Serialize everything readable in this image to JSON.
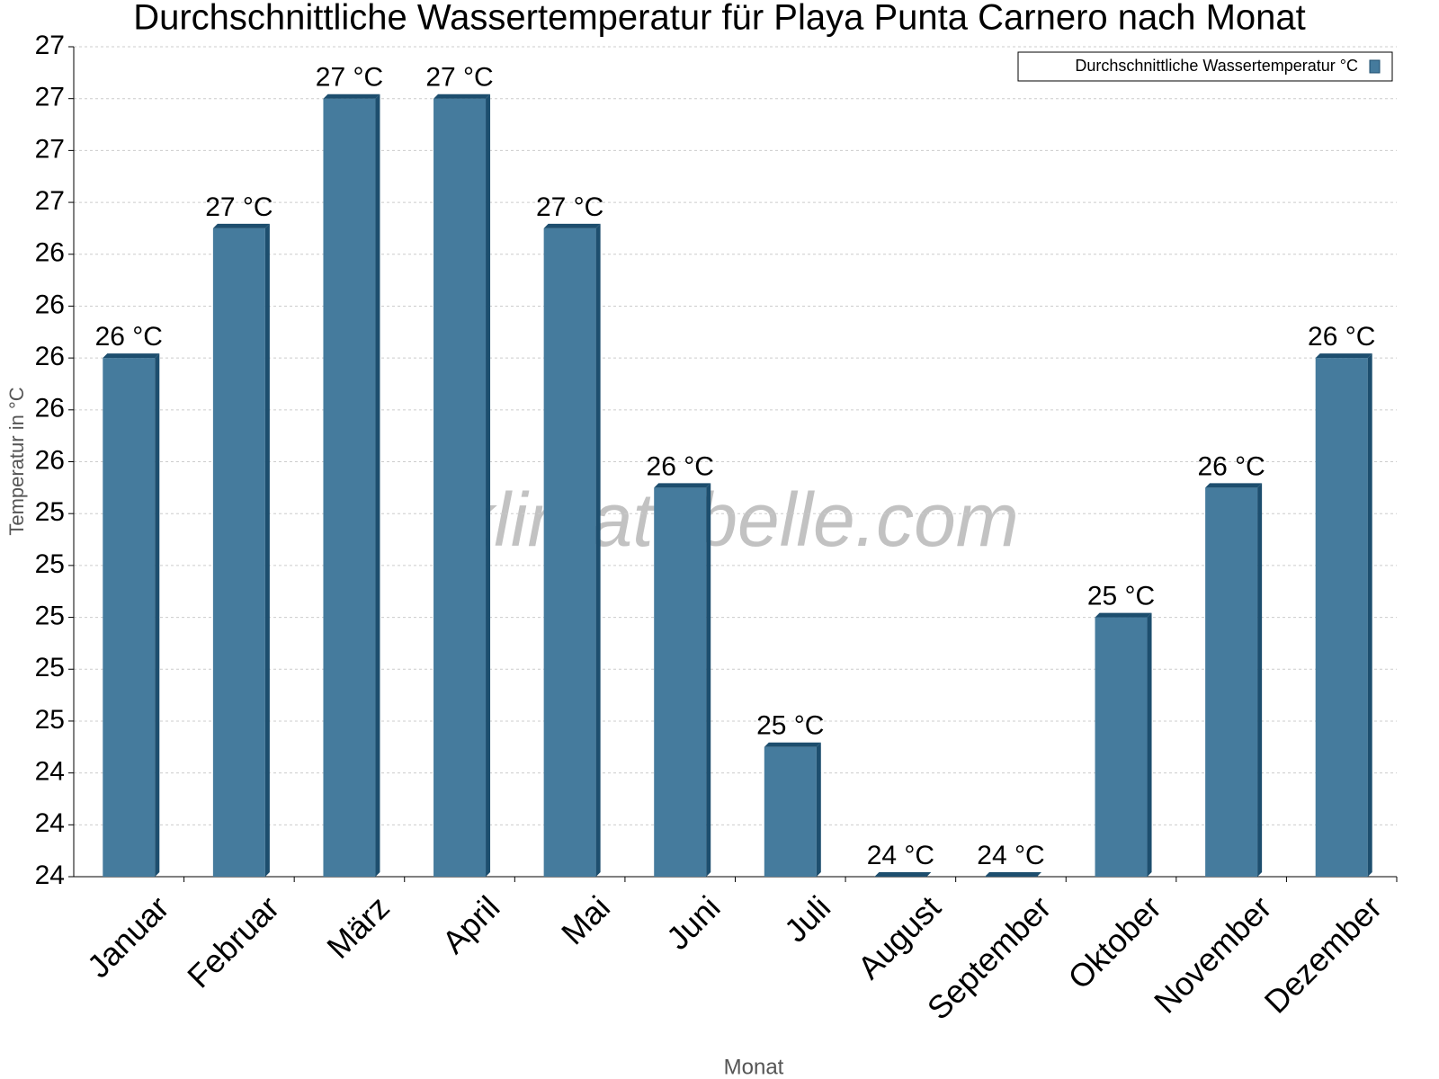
{
  "chart_data": {
    "type": "bar",
    "title": "Durchschnittliche Wassertemperatur für Playa Punta Carnero nach Monat",
    "x_label": "Monat",
    "y_label": "Temperatur in °C",
    "watermark": "klimatabelle.com",
    "categories": [
      "Januar",
      "Februar",
      "März",
      "April",
      "Mai",
      "Juni",
      "Juli",
      "August",
      "September",
      "Oktober",
      "November",
      "Dezember"
    ],
    "series": [
      {
        "name": "Durchschnittliche Wassertemperatur °C",
        "color": "#457b9d",
        "values": [
          26.0,
          26.5,
          27.0,
          27.0,
          26.5,
          25.5,
          24.5,
          24.0,
          24.0,
          25.0,
          25.5,
          26.0
        ],
        "value_labels": [
          "26 °C",
          "27 °C",
          "27 °C",
          "27 °C",
          "27 °C",
          "26 °C",
          "25 °C",
          "24 °C",
          "24 °C",
          "25 °C",
          "26 °C",
          "26 °C"
        ]
      }
    ],
    "ylim": [
      24,
      27.2
    ],
    "yticks": [
      24,
      {
        "value": 24.2,
        "label": "24"
      },
      {
        "value": 24.4,
        "label": "24"
      },
      {
        "value": 24.6,
        "label": "25"
      },
      {
        "value": 24.8,
        "label": "25"
      },
      25,
      {
        "value": 25.2,
        "label": "25"
      },
      {
        "value": 25.4,
        "label": "25"
      },
      {
        "value": 25.6,
        "label": "26"
      },
      {
        "value": 25.8,
        "label": "26"
      },
      26,
      {
        "value": 26.2,
        "label": "26"
      },
      {
        "value": 26.4,
        "label": "26"
      },
      {
        "value": 26.6,
        "label": "27"
      },
      {
        "value": 26.8,
        "label": "27"
      },
      27,
      {
        "value": 27.2,
        "label": "27"
      }
    ],
    "grid": true,
    "legend": "top-right"
  }
}
